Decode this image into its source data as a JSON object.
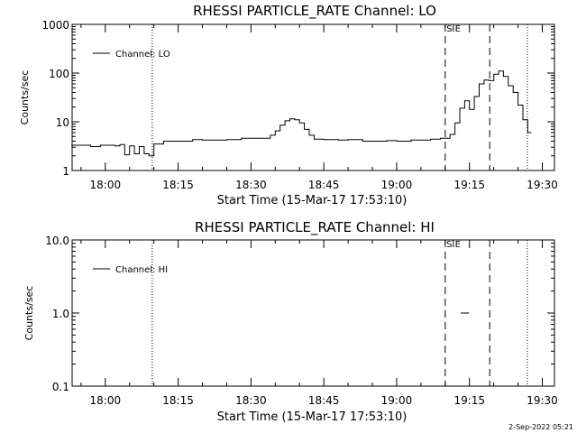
{
  "footer": {
    "timestamp": "2-Sep-2022 05:21"
  },
  "chart_data": [
    {
      "type": "line",
      "title": "RHESSI PARTICLE_RATE Channel: LO",
      "xlabel": "Start Time (15-Mar-17 17:53:10)",
      "ylabel": "Counts/sec",
      "yscale": "log",
      "ylim": [
        1,
        1000
      ],
      "xlim": [
        "17:53:10",
        "19:32:30"
      ],
      "xticks": [
        "18:00",
        "18:15",
        "18:30",
        "18:45",
        "19:00",
        "19:15",
        "19:30"
      ],
      "yticks": [
        "1",
        "10",
        "100",
        "1000"
      ],
      "legend": {
        "position": "top-left",
        "entries": [
          "Channel: LO"
        ]
      },
      "markers": {
        "dotted": [
          "18:09:40",
          "19:26:55"
        ],
        "dashed": [
          "19:10:00",
          "19:19:10"
        ],
        "solid_short": [
          "19:11:40"
        ]
      },
      "marker_labels": [
        {
          "text": "S",
          "at": "19:10:15"
        },
        {
          "text": "E",
          "at": "19:12:00"
        }
      ],
      "series": [
        {
          "name": "Channel: LO",
          "x": [
            "17:53",
            "17:55",
            "17:57",
            "17:59",
            "18:00",
            "18:02",
            "18:03",
            "18:04",
            "18:05",
            "18:06",
            "18:07",
            "18:08",
            "18:09",
            "18:10",
            "18:12",
            "18:15",
            "18:18",
            "18:20",
            "18:25",
            "18:28",
            "18:30",
            "18:32",
            "18:34",
            "18:35",
            "18:36",
            "18:37",
            "18:38",
            "18:39",
            "18:40",
            "18:41",
            "18:42",
            "18:43",
            "18:45",
            "18:48",
            "18:50",
            "18:53",
            "18:55",
            "18:58",
            "19:00",
            "19:03",
            "19:05",
            "19:07",
            "19:09",
            "19:10",
            "19:11",
            "19:12",
            "19:13",
            "19:14",
            "19:15",
            "19:16",
            "19:17",
            "19:18",
            "19:19",
            "19:20",
            "19:21",
            "19:22",
            "19:23",
            "19:24",
            "19:25",
            "19:26",
            "19:27"
          ],
          "y": [
            3.3,
            3.3,
            3.1,
            3.3,
            3.3,
            3.2,
            3.4,
            2.1,
            3.2,
            2.2,
            3.1,
            2.2,
            2.0,
            3.5,
            4.0,
            4.0,
            4.3,
            4.2,
            4.3,
            4.6,
            4.6,
            4.6,
            5.3,
            6.5,
            8.5,
            10.5,
            11.5,
            11.0,
            9.5,
            7.0,
            5.3,
            4.4,
            4.3,
            4.2,
            4.3,
            4.0,
            4.0,
            4.1,
            4.0,
            4.2,
            4.2,
            4.4,
            4.6,
            4.6,
            5.5,
            9.5,
            19,
            27,
            18,
            33,
            60,
            72,
            70,
            95,
            110,
            85,
            55,
            40,
            22,
            11,
            6
          ]
        }
      ]
    },
    {
      "type": "line",
      "title": "RHESSI PARTICLE_RATE Channel: HI",
      "xlabel": "Start Time (15-Mar-17 17:53:10)",
      "ylabel": "Counts/sec",
      "yscale": "log",
      "ylim": [
        0.1,
        10
      ],
      "xlim": [
        "17:53:10",
        "19:32:30"
      ],
      "xticks": [
        "18:00",
        "18:15",
        "18:30",
        "18:45",
        "19:00",
        "19:15",
        "19:30"
      ],
      "yticks": [
        "0.1",
        "1.0",
        "10.0"
      ],
      "legend": {
        "position": "top-left",
        "entries": [
          "Channel: HI"
        ]
      },
      "markers": {
        "dotted": [
          "18:09:40",
          "19:26:55"
        ],
        "dashed": [
          "19:10:00",
          "19:19:10"
        ],
        "solid_short": [
          "19:11:40"
        ]
      },
      "marker_labels": [
        {
          "text": "S",
          "at": "19:10:15"
        },
        {
          "text": "E",
          "at": "19:12:00"
        }
      ],
      "series": [
        {
          "name": "Channel: HI",
          "x": [
            "19:13:10",
            "19:14:55"
          ],
          "y": [
            1.0,
            1.0
          ]
        }
      ]
    }
  ]
}
